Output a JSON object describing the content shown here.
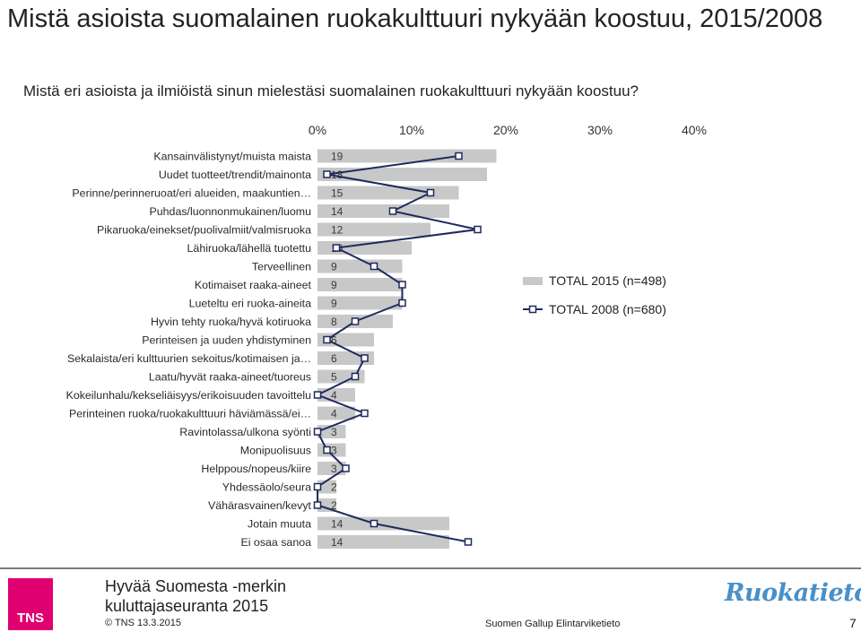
{
  "header": {
    "title": "Mistä asioista suomalainen ruokakulttuuri nykyään koostuu, 2015/2008",
    "question": "Mistä eri asioista ja ilmiöistä sinun mielestäsi suomalainen ruokakulttuuri nykyään koostuu?"
  },
  "chart_data": {
    "type": "bar",
    "orientation": "horizontal",
    "x_ticks": [
      "0%",
      "10%",
      "20%",
      "30%",
      "40%"
    ],
    "xlim": [
      0,
      40
    ],
    "grid": false,
    "legend_position": "right",
    "categories": [
      "Kansainvälistynyt/muista maista",
      "Uudet tuotteet/trendit/mainonta",
      "Perinne/perinneruoat/eri alueiden, maakuntien…",
      "Puhdas/luonnonmukainen/luomu",
      "Pikaruoka/einekset/puolivalmiit/valmisruoka",
      "Lähiruoka/lähellä tuotettu",
      "Terveellinen",
      "Kotimaiset raaka-aineet",
      "Lueteltu eri ruoka-aineita",
      "Hyvin tehty ruoka/hyvä kotiruoka",
      "Perinteisen ja uuden yhdistyminen",
      "Sekalaista/eri kulttuurien sekoitus/kotimaisen ja…",
      "Laatu/hyvät raaka-aineet/tuoreus",
      "Kokeilunhalu/kekseliäisyys/erikoisuuden tavoittelu",
      "Perinteinen ruoka/ruokakulttuuri häviämässä/ei…",
      "Ravintolassa/ulkona syönti",
      "Monipuolisuus",
      "Helppous/nopeus/kiire",
      "Yhdessäolo/seura",
      "Vähärasvainen/kevyt",
      "Jotain muuta",
      "Ei osaa sanoa"
    ],
    "series": [
      {
        "name": "TOTAL 2015 (n=498)",
        "color": "#c8c8c8",
        "values": [
          19,
          18,
          15,
          14,
          12,
          10,
          9,
          9,
          9,
          8,
          6,
          6,
          5,
          4,
          4,
          3,
          3,
          3,
          2,
          2,
          14,
          14
        ],
        "value_labels": [
          "19",
          "18",
          "15",
          "14",
          "12",
          "10",
          "9",
          "9",
          "9",
          "8",
          "6",
          "6",
          "5",
          "4",
          "4",
          "3",
          "3",
          "3",
          "2",
          "2",
          "14",
          "14"
        ]
      },
      {
        "name": "TOTAL 2008 (n=680)",
        "color": "#1f2a5e",
        "values": [
          15,
          1,
          12,
          8,
          17,
          2,
          6,
          9,
          9,
          4,
          1,
          5,
          4,
          0,
          5,
          0,
          1,
          3,
          0,
          0,
          6,
          16
        ]
      }
    ]
  },
  "footer": {
    "report_title": "Hyvää Suomesta -merkin kuluttajaseuranta 2015",
    "copyright": "© TNS 13.3.2015",
    "source": "Suomen Gallup Elintarviketieto",
    "page_number": "7",
    "tns_logo_text": "TNS",
    "brand_logo_text": "Ruokatieto"
  }
}
